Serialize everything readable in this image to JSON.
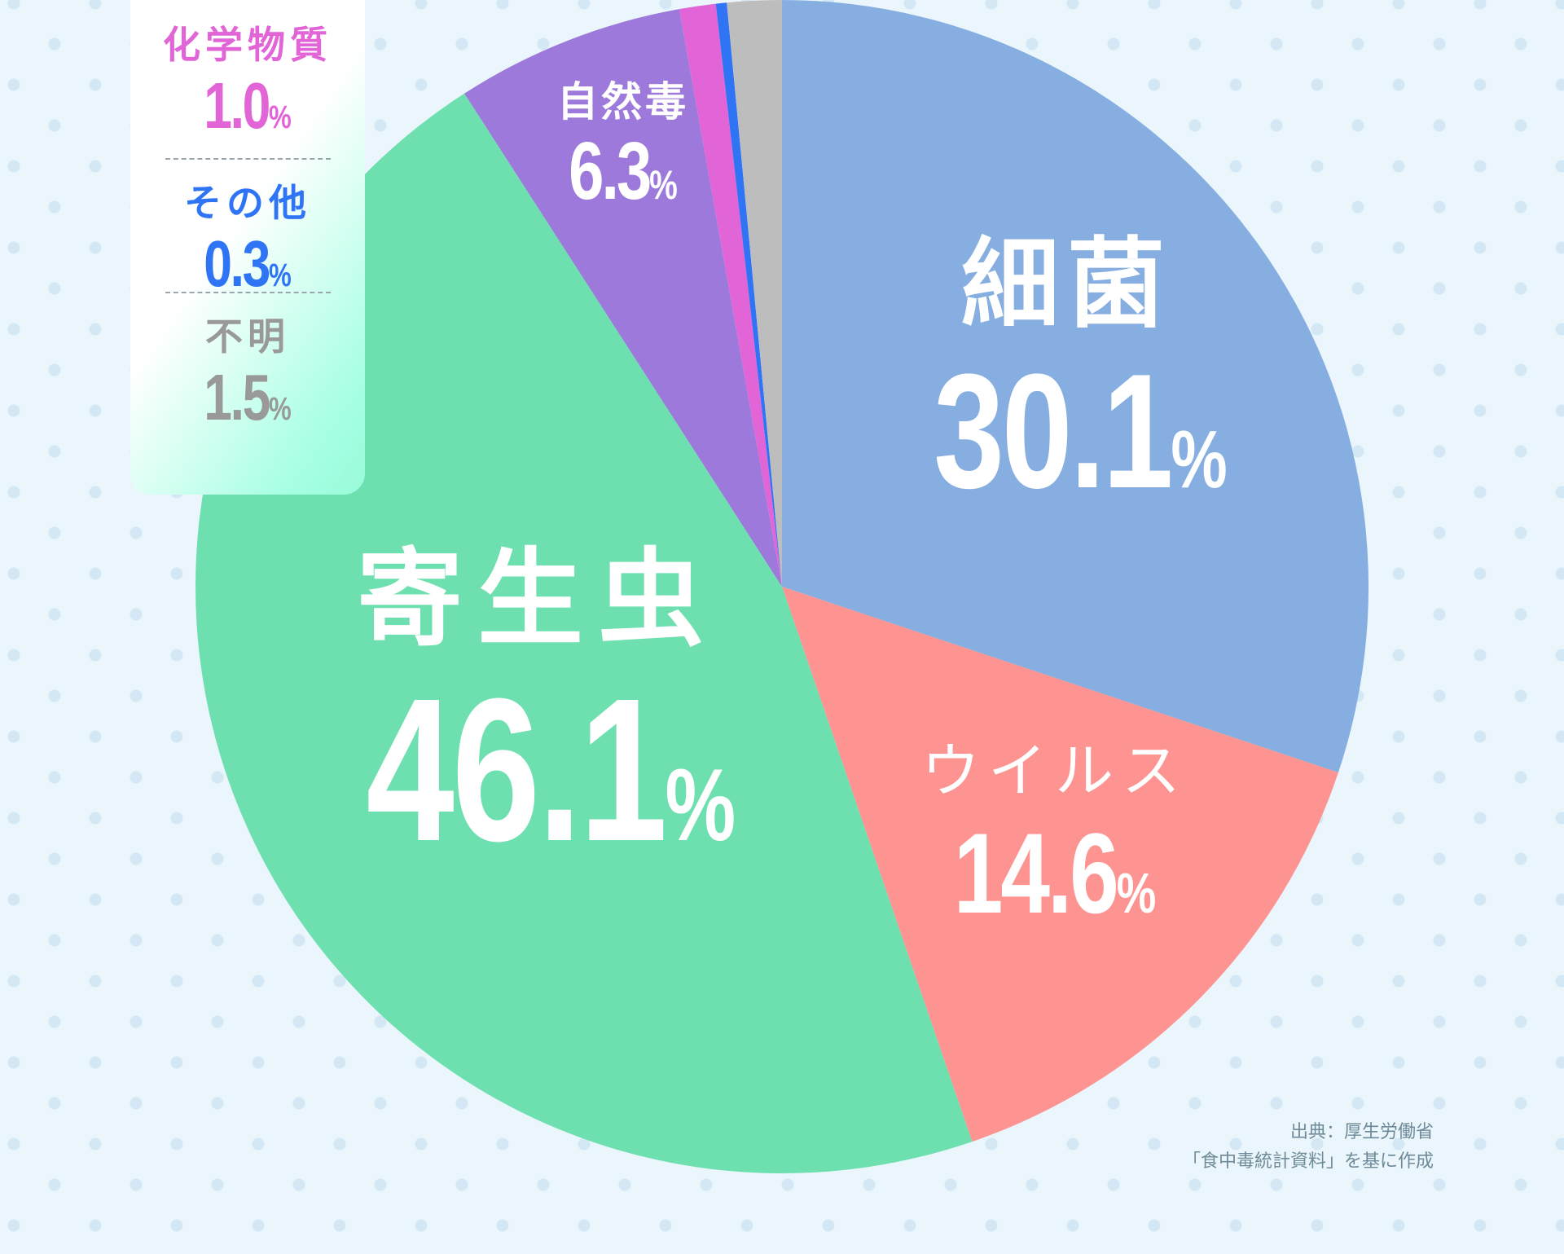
{
  "chart_data": {
    "type": "pie",
    "title": "",
    "start_angle_deg": 0,
    "direction": "clockwise",
    "categories": [
      "細菌",
      "ウイルス",
      "寄生虫",
      "自然毒",
      "化学物質",
      "その他",
      "不明"
    ],
    "values": [
      30.1,
      14.6,
      46.1,
      6.3,
      1.0,
      0.3,
      1.5
    ],
    "colors": [
      "#86aee0",
      "#fd9491",
      "#6ee0b0",
      "#9c79db",
      "#e165d7",
      "#2f74f5",
      "#bdbdbd"
    ],
    "unit": "%",
    "legend_position": "top-left box for small slices"
  },
  "labels": {
    "bacteria": {
      "name": "細菌",
      "value": "30.1",
      "pct": "%"
    },
    "virus": {
      "name": "ウイルス",
      "value": "14.6",
      "pct": "%"
    },
    "parasite": {
      "name": "寄生虫",
      "value": "46.1",
      "pct": "%"
    },
    "natural_toxin": {
      "name": "自然毒",
      "value": "6.3",
      "pct": "%"
    }
  },
  "side_box": {
    "items": [
      {
        "name": "化学物質",
        "value": "1.0",
        "pct": "%",
        "color": "#e165d7"
      },
      {
        "name": "その他",
        "value": "0.3",
        "pct": "%",
        "color": "#2f74f5"
      },
      {
        "name": "不明",
        "value": "1.5",
        "pct": "%",
        "color": "#999999"
      }
    ]
  },
  "source": {
    "line1": "出典：厚生労働省",
    "line2": "「食中毒統計資料」を基に作成"
  }
}
